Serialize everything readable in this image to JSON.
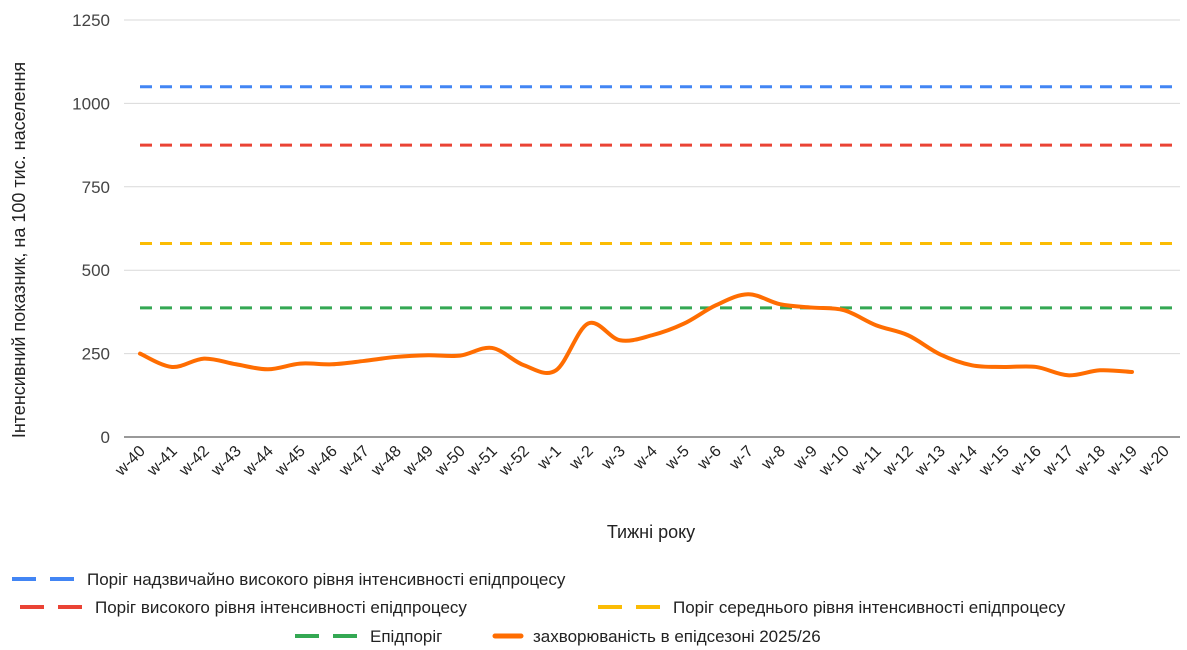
{
  "chart_data": {
    "type": "line",
    "xlabel": "Тижні року",
    "ylabel": "Інтенсивний показник, на 100 тис. населення",
    "ylim": [
      0,
      1250
    ],
    "yticks": [
      0,
      250,
      500,
      750,
      1000,
      1250
    ],
    "grid": "horizontal",
    "legend_position": "bottom",
    "categories": [
      "w-40",
      "w-41",
      "w-42",
      "w-43",
      "w-44",
      "w-45",
      "w-46",
      "w-47",
      "w-48",
      "w-49",
      "w-50",
      "w-51",
      "w-52",
      "w-1",
      "w-2",
      "w-3",
      "w-4",
      "w-5",
      "w-6",
      "w-7",
      "w-8",
      "w-9",
      "w-10",
      "w-11",
      "w-12",
      "w-13",
      "w-14",
      "w-15",
      "w-16",
      "w-17",
      "w-18",
      "w-19",
      "w-20"
    ],
    "thresholds": [
      {
        "name": "Поріг надзвичайно високого рівня інтенсивності епідпроцесу",
        "value": 1050,
        "color": "#4285f4"
      },
      {
        "name": "Поріг високого рівня інтенсивності епідпроцесу",
        "value": 875,
        "color": "#ea4335"
      },
      {
        "name": "Поріг середнього рівня інтенсивності епідпроцесу",
        "value": 580,
        "color": "#fbbc04"
      },
      {
        "name": "Епідпоріг",
        "value": 387,
        "color": "#34a853"
      }
    ],
    "series": [
      {
        "name": "захворюваність в епідсезоні 2025/26",
        "color": "#ff6d01",
        "values": [
          250,
          210,
          235,
          218,
          203,
          220,
          218,
          228,
          240,
          245,
          244,
          267,
          215,
          200,
          340,
          290,
          305,
          340,
          395,
          428,
          398,
          388,
          380,
          335,
          305,
          248,
          215,
          210,
          210,
          185,
          200,
          195,
          null
        ]
      }
    ]
  }
}
